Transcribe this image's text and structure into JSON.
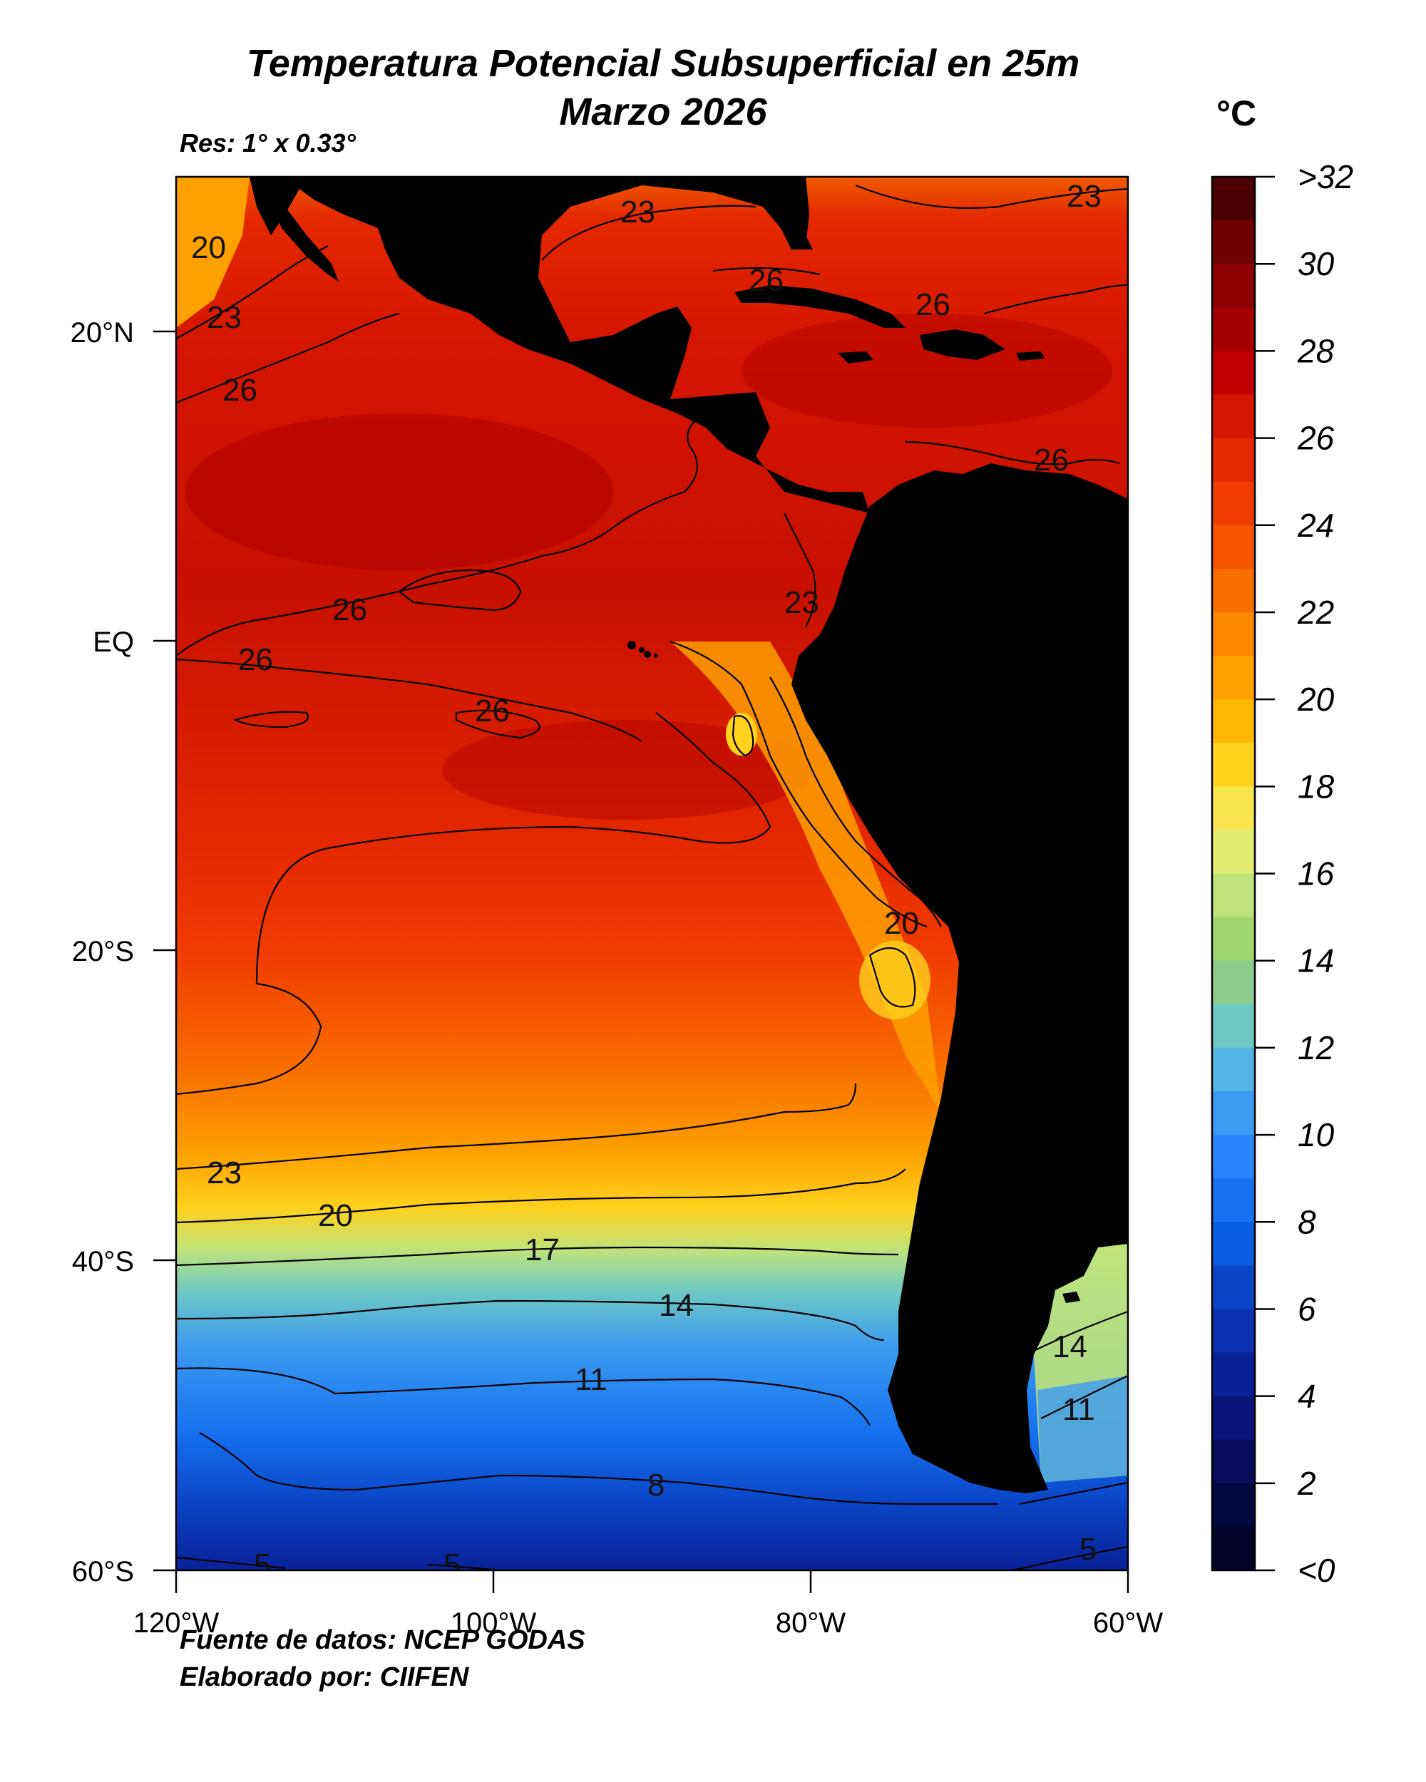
{
  "title_line1": "Temperatura Potencial Subsuperficial en 25m",
  "title_line2": "Marzo 2026",
  "resolution": "Res: 1° x 0.33°",
  "unit": "°C",
  "footer_source": "Fuente de datos: NCEP GODAS",
  "footer_author": "Elaborado por: CIIFEN",
  "map": {
    "longitude_range": [
      -120,
      -60
    ],
    "latitude_range": [
      -60,
      30
    ],
    "lon_ticks": [
      "120°W",
      "100°W",
      "80°W",
      "60°W"
    ],
    "lat_ticks": [
      "20°N",
      "EQ",
      "20°S",
      "40°S",
      "60°S"
    ],
    "land_color": "#000000",
    "contour_labels": [
      "23",
      "20",
      "23",
      "26",
      "26",
      "26",
      "26",
      "26",
      "23",
      "20",
      "23",
      "20",
      "17",
      "14",
      "11",
      "8",
      "5",
      "5",
      "5",
      "14",
      "11",
      "26",
      "26"
    ]
  },
  "colorbar": {
    "labels": [
      ">32",
      "30",
      "28",
      "26",
      "24",
      "22",
      "20",
      "18",
      "16",
      "14",
      "12",
      "10",
      "8",
      "6",
      "4",
      "2",
      "<0"
    ],
    "colors_top_to_bottom": [
      "#4a0000",
      "#6e0000",
      "#8c0000",
      "#a50000",
      "#c00000",
      "#d41500",
      "#e42800",
      "#f03c00",
      "#f55500",
      "#f86e00",
      "#fb8800",
      "#fda000",
      "#ffb900",
      "#ffd21e",
      "#f7e650",
      "#e2ee72",
      "#bfe37a",
      "#9fd66e",
      "#8ccc8e",
      "#6ec9c4",
      "#54b4e4",
      "#3c9af0",
      "#2a86ff",
      "#1672f0",
      "#0a5ce0",
      "#0a46c8",
      "#0a32b0",
      "#0a2096",
      "#081478",
      "#060c5a",
      "#040840",
      "#020228"
    ]
  }
}
